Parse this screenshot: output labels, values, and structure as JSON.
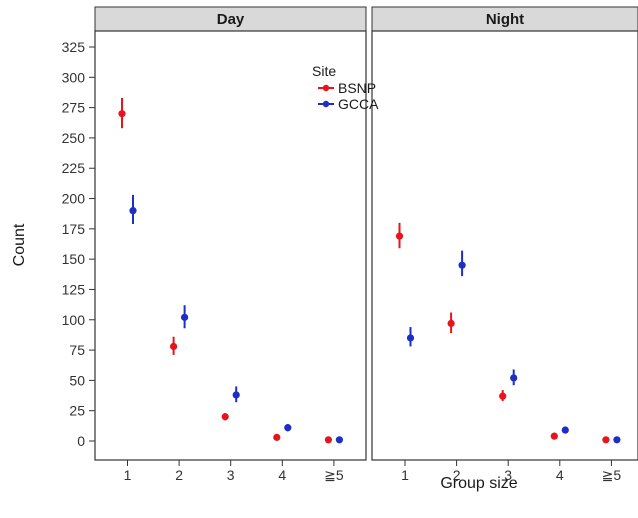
{
  "chart_data": {
    "type": "scatter",
    "xlabel": "Group size",
    "ylabel": "Count",
    "ylim": [
      -15,
      340
    ],
    "yticks": [
      0,
      25,
      50,
      75,
      100,
      125,
      150,
      175,
      200,
      225,
      250,
      275,
      300,
      325
    ],
    "x_tick_labels": [
      "1",
      "2",
      "3",
      "4",
      "≧5"
    ],
    "panels": [
      {
        "title": "Day",
        "series": [
          {
            "name": "BSNP",
            "values": [
              270,
              78,
              20,
              3,
              1
            ],
            "lower": [
              258,
              71,
              17,
              1,
              0
            ],
            "upper": [
              283,
              86,
              23,
              5,
              2
            ]
          },
          {
            "name": "GCCA",
            "values": [
              190,
              102,
              38,
              11,
              1
            ],
            "lower": [
              179,
              93,
              32,
              8,
              0
            ],
            "upper": [
              203,
              112,
              45,
              14,
              2
            ]
          }
        ]
      },
      {
        "title": "Night",
        "series": [
          {
            "name": "BSNP",
            "values": [
              169,
              97,
              37,
              4,
              1
            ],
            "lower": [
              159,
              89,
              33,
              2,
              0
            ],
            "upper": [
              180,
              106,
              42,
              6,
              2
            ]
          },
          {
            "name": "GCCA",
            "values": [
              85,
              145,
              52,
              9,
              1
            ],
            "lower": [
              78,
              136,
              46,
              7,
              0
            ],
            "upper": [
              94,
              157,
              59,
              12,
              2
            ]
          }
        ]
      }
    ],
    "legend": {
      "title": "Site",
      "position": "top-center",
      "entries": [
        "BSNP",
        "GCCA"
      ]
    },
    "colors": {
      "BSNP": "#e8141c",
      "GCCA": "#1c2ec4"
    },
    "grid": false
  }
}
